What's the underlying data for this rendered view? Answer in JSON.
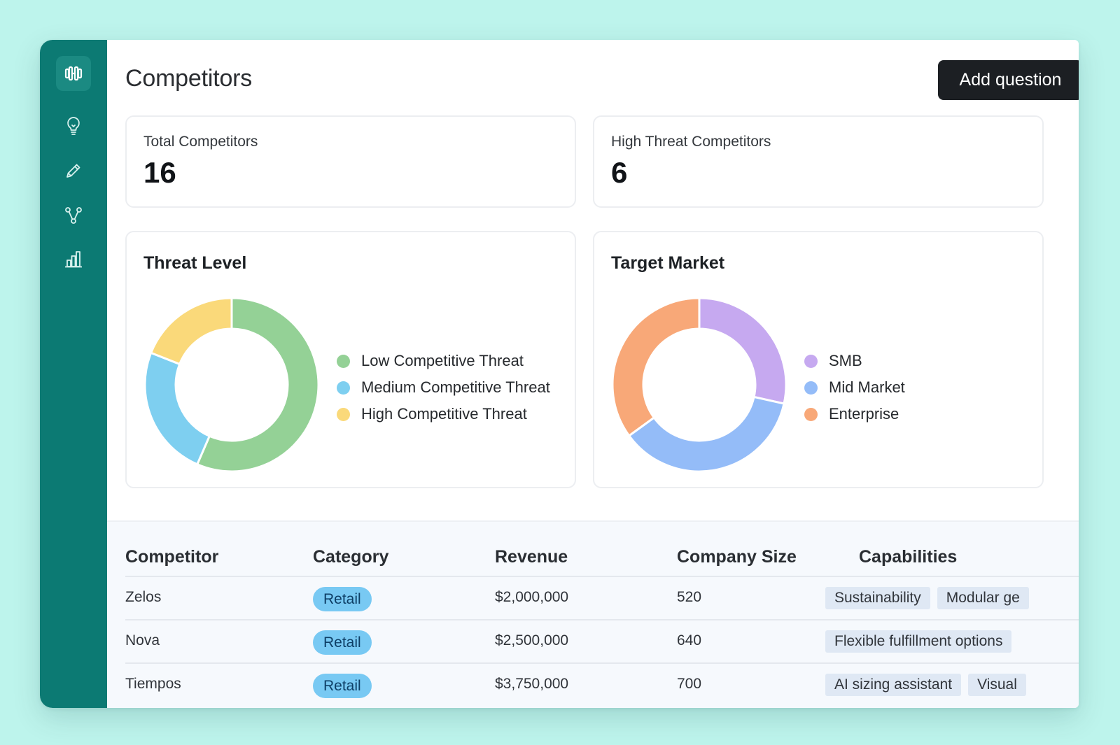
{
  "page": {
    "title": "Competitors",
    "add_button": "Add question"
  },
  "sidebar": {
    "logo_icon": "dumbbell-icon",
    "items": [
      {
        "icon": "lightbulb-icon"
      },
      {
        "icon": "pencil-icon"
      },
      {
        "icon": "branch-icon"
      },
      {
        "icon": "bar-chart-icon"
      }
    ]
  },
  "stats": [
    {
      "label": "Total Competitors",
      "value": "16"
    },
    {
      "label": "High Threat Competitors",
      "value": "6"
    }
  ],
  "colors": {
    "sidebar": "#0c7a73",
    "low": "#94d196",
    "medium": "#7ecff0",
    "high": "#fad97a",
    "smb": "#c6a9f0",
    "mid_market": "#94bcf8",
    "enterprise": "#f8a878",
    "pill": "#78c9f3"
  },
  "chart_data": [
    {
      "type": "pie",
      "title": "Threat Level",
      "categories": [
        "Low Competitive Threat",
        "Medium Competitive Threat",
        "High Competitive Threat"
      ],
      "values": [
        56.5,
        24.5,
        19
      ],
      "colors": [
        "#94d196",
        "#7ecff0",
        "#fad97a"
      ],
      "legend": "right"
    },
    {
      "type": "pie",
      "title": "Target Market",
      "categories": [
        "SMB",
        "Mid Market",
        "Enterprise"
      ],
      "values": [
        28.5,
        36.5,
        35
      ],
      "colors": [
        "#c6a9f0",
        "#94bcf8",
        "#f8a878"
      ],
      "legend": "right"
    }
  ],
  "table": {
    "headers": [
      "Competitor",
      "Category",
      "Revenue",
      "Company Size",
      "Capabilities"
    ],
    "rows": [
      {
        "name": "Zelos",
        "category": "Retail",
        "revenue": "$2,000,000",
        "size": "520",
        "capabilities": [
          "Sustainability",
          "Modular ge"
        ]
      },
      {
        "name": "Nova",
        "category": "Retail",
        "revenue": "$2,500,000",
        "size": "640",
        "capabilities": [
          "Flexible fulfillment options"
        ]
      },
      {
        "name": "Tiempos",
        "category": "Retail",
        "revenue": "$3,750,000",
        "size": "700",
        "capabilities": [
          "AI sizing assistant",
          "Visual"
        ]
      }
    ]
  }
}
